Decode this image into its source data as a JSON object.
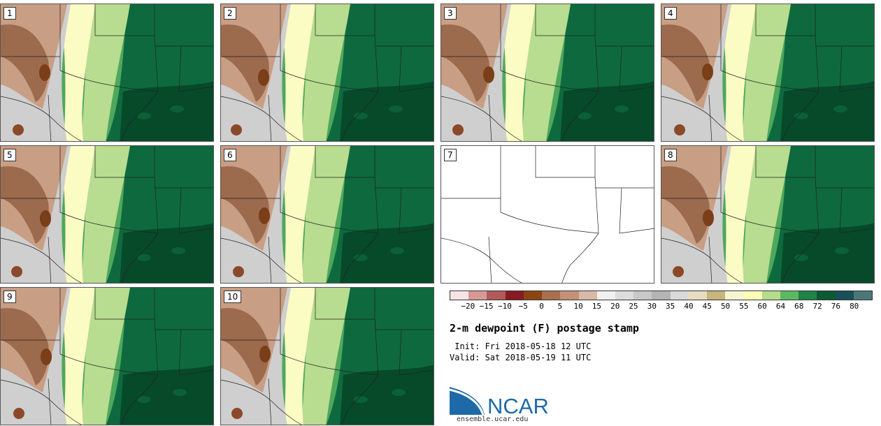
{
  "panels": [
    {
      "label": "1",
      "has_data": true
    },
    {
      "label": "2",
      "has_data": true
    },
    {
      "label": "3",
      "has_data": true
    },
    {
      "label": "4",
      "has_data": true
    },
    {
      "label": "5",
      "has_data": true
    },
    {
      "label": "6",
      "has_data": true
    },
    {
      "label": "7",
      "has_data": false
    },
    {
      "label": "8",
      "has_data": true
    },
    {
      "label": "9",
      "has_data": true
    },
    {
      "label": "10",
      "has_data": true
    }
  ],
  "colorbar": {
    "ticks": [
      "−20",
      "−15",
      "−10",
      "−5",
      "0",
      "5",
      "10",
      "15",
      "20",
      "25",
      "30",
      "35",
      "40",
      "45",
      "50",
      "55",
      "60",
      "64",
      "68",
      "72",
      "76",
      "80"
    ],
    "colors": [
      "#f6e4e4",
      "#d89898",
      "#b25a5a",
      "#8a1a22",
      "#8b4513",
      "#a8704e",
      "#c49177",
      "#d9b9a7",
      "#f0f0f0",
      "#dcdcdc",
      "#c8c8c8",
      "#b4b4b4",
      "#dadada",
      "#e8dcc0",
      "#c8b47c",
      "#f5f5d0",
      "#fcfcb8",
      "#b4dc8c",
      "#5cb864",
      "#1e8448",
      "#0c5a34",
      "#1a4e5a",
      "#4a7878"
    ]
  },
  "title": "2-m dewpoint (F) postage stamp",
  "init": " Init: Fri 2018-05-18 12 UTC",
  "valid": "Valid: Sat 2018-05-19 11 UTC",
  "logo": {
    "text": "NCAR",
    "url": "ensemble.ucar.edu",
    "blue": "#1e6aa8"
  },
  "palette": {
    "dry": "#9c6a4c",
    "tan": "#c89e84",
    "grey": "#cfcfcf",
    "cream": "#fbfbc4",
    "light": "#b8dc90",
    "mid": "#4ea85c",
    "dark": "#0e6a3e",
    "deep": "#064a2a"
  }
}
